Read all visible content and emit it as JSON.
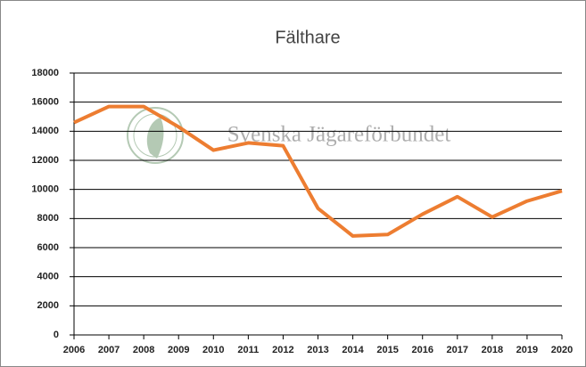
{
  "chart_data": {
    "type": "line",
    "title": "Fälthare",
    "watermark": "Svenska Jägareförbundet",
    "categories": [
      "2006",
      "2007",
      "2008",
      "2009",
      "2010",
      "2011",
      "2012",
      "2013",
      "2014",
      "2015",
      "2016",
      "2017",
      "2018",
      "2019",
      "2020"
    ],
    "series": [
      {
        "name": "Fälthare",
        "color": "#ed7d31",
        "values": [
          14600,
          15700,
          15700,
          14300,
          12700,
          13200,
          13000,
          8700,
          6800,
          6900,
          8300,
          9500,
          8100,
          9200,
          9900
        ]
      }
    ],
    "ylim": [
      0,
      18000
    ],
    "yticks": [
      0,
      2000,
      4000,
      6000,
      8000,
      10000,
      12000,
      14000,
      16000,
      18000
    ],
    "grid": true
  }
}
